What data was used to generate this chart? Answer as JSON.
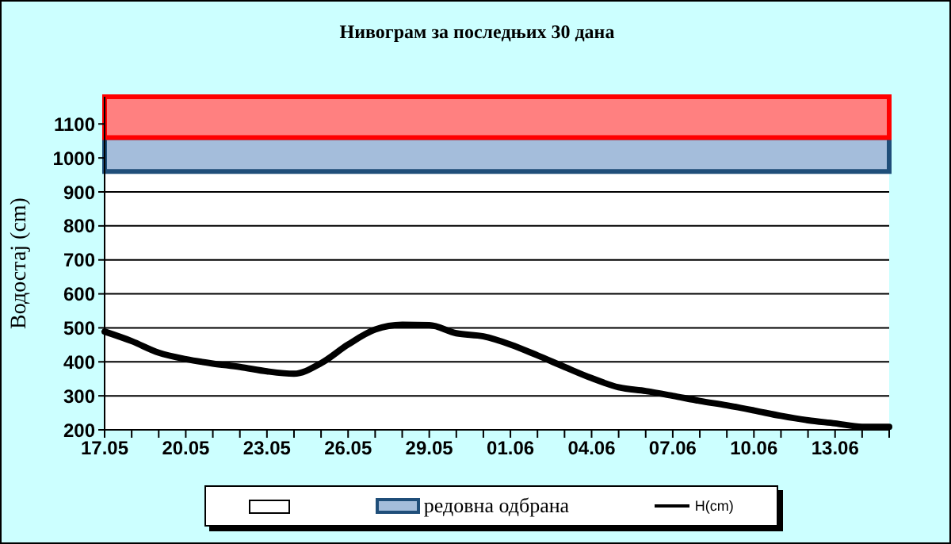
{
  "chart_data": {
    "type": "line",
    "title": "Нивограм за последњих 30 дана",
    "ylabel": "Водостај (cm)",
    "categories": [
      "17.05",
      null,
      null,
      "20.05",
      null,
      null,
      "23.05",
      null,
      null,
      "26.05",
      null,
      null,
      "29.05",
      null,
      null,
      "01.06",
      null,
      null,
      "04.06",
      null,
      null,
      "07.06",
      null,
      null,
      "10.06",
      null,
      null,
      "13.06",
      null,
      null
    ],
    "series": [
      {
        "name": "H(cm)",
        "color": "#000000",
        "values": [
          489,
          461,
          427,
          408,
          395,
          385,
          372,
          365,
          396,
          451,
          495,
          509,
          508,
          484,
          475,
          451,
          419,
          385,
          352,
          325,
          314,
          300,
          285,
          272,
          257,
          241,
          228,
          219,
          209,
          209
        ]
      }
    ],
    "ylim": [
      200,
      1180
    ],
    "yticks": [
      200,
      300,
      400,
      500,
      600,
      700,
      800,
      900,
      1000,
      1100
    ],
    "bands": [
      {
        "axis": "y",
        "from": 960,
        "to": 1060,
        "label": "редовна одбрана",
        "color": "#a4bddb"
      },
      {
        "axis": "y",
        "from": 1060,
        "to": 1180,
        "color": "#ff8080"
      }
    ],
    "grid": "y",
    "legend": "bottom",
    "marker": "none",
    "line_style": "solid"
  }
}
